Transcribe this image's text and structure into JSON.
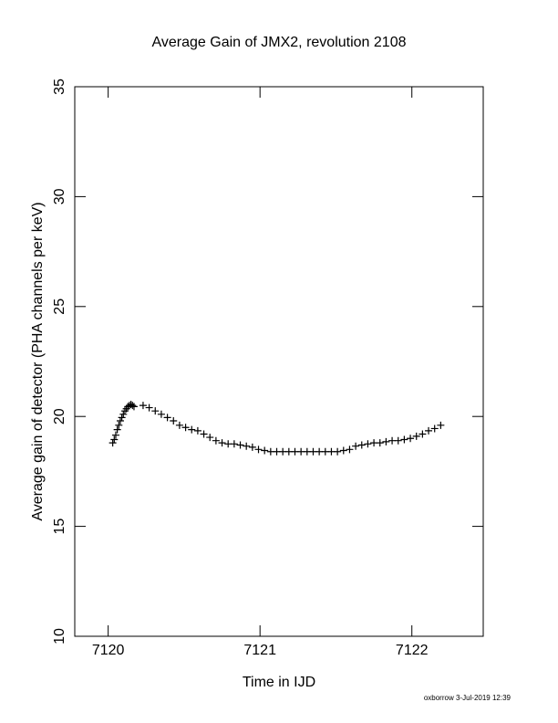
{
  "chart_data": {
    "type": "scatter",
    "title": "Average Gain of JMX2, revolution 2108",
    "x_label": "Time in IJD",
    "y_label": "Average gain of detector (PHA channels per keV)",
    "footer": "oxborrow  3-Jul-2019 12:39",
    "xlim": [
      7119.78,
      7122.47
    ],
    "xticks": [
      7120,
      7121,
      7122
    ],
    "ylim": [
      10,
      35
    ],
    "yticks": [
      10,
      15,
      20,
      25,
      30,
      35
    ],
    "color": "#000000",
    "marker": "+",
    "x": [
      7120.03,
      7120.04,
      7120.05,
      7120.06,
      7120.07,
      7120.08,
      7120.09,
      7120.1,
      7120.11,
      7120.12,
      7120.13,
      7120.14,
      7120.15,
      7120.16,
      7120.17,
      7120.23,
      7120.27,
      7120.31,
      7120.35,
      7120.39,
      7120.43,
      7120.47,
      7120.51,
      7120.55,
      7120.59,
      7120.63,
      7120.67,
      7120.71,
      7120.75,
      7120.79,
      7120.83,
      7120.87,
      7120.91,
      7120.95,
      7120.99,
      7121.03,
      7121.07,
      7121.11,
      7121.15,
      7121.19,
      7121.23,
      7121.27,
      7121.31,
      7121.35,
      7121.39,
      7121.43,
      7121.47,
      7121.51,
      7121.55,
      7121.59,
      7121.63,
      7121.67,
      7121.71,
      7121.75,
      7121.79,
      7121.83,
      7121.87,
      7121.91,
      7121.95,
      7121.99,
      7122.03,
      7122.07,
      7122.11,
      7122.15,
      7122.19
    ],
    "values": [
      18.8,
      18.95,
      19.15,
      19.4,
      19.6,
      19.8,
      19.95,
      20.1,
      20.25,
      20.35,
      20.45,
      20.5,
      20.55,
      20.5,
      20.45,
      20.5,
      20.4,
      20.25,
      20.1,
      19.95,
      19.8,
      19.6,
      19.5,
      19.4,
      19.35,
      19.2,
      19.05,
      18.9,
      18.8,
      18.75,
      18.75,
      18.7,
      18.65,
      18.6,
      18.5,
      18.45,
      18.4,
      18.4,
      18.4,
      18.4,
      18.4,
      18.4,
      18.4,
      18.4,
      18.4,
      18.4,
      18.4,
      18.4,
      18.45,
      18.5,
      18.65,
      18.7,
      18.75,
      18.8,
      18.8,
      18.85,
      18.9,
      18.9,
      18.95,
      19.0,
      19.1,
      19.2,
      19.35,
      19.45,
      19.6
    ]
  }
}
